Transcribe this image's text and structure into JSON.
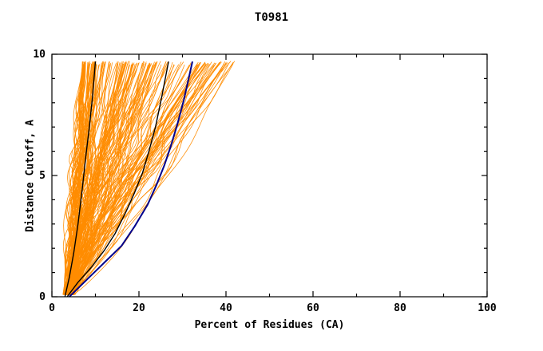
{
  "window": {
    "title": "T0981"
  },
  "chart_data": {
    "type": "line",
    "title": "T0981",
    "xlabel": "Percent of Residues (CA)",
    "ylabel": "Distance Cutoff, A",
    "xlim": [
      0,
      100
    ],
    "ylim": [
      0,
      10
    ],
    "x_ticks": [
      0,
      20,
      40,
      60,
      80,
      100
    ],
    "y_ticks": [
      0,
      5,
      10
    ],
    "x_minor_step": 10,
    "y_minor_step": 1,
    "grid": false,
    "legend": "none",
    "colors": {
      "ensemble": "#ff8c00",
      "reference": "#000000",
      "highlight": "#00008b"
    },
    "series": [
      {
        "name": "model-ensemble",
        "style": "bundle",
        "color": "#ff8c00",
        "count": 180,
        "x_start_range": [
          2.5,
          5.0
        ],
        "x_top_range": [
          7,
          43
        ],
        "top_skew_exp": 1.6,
        "shape_exp_range": [
          0.75,
          1.35
        ],
        "y_top_range": [
          9.55,
          9.72
        ]
      },
      {
        "name": "reference-left",
        "color": "#000000",
        "width": 1.4,
        "points": [
          [
            3,
            0
          ],
          [
            4,
            0.8
          ],
          [
            5,
            1.8
          ],
          [
            6,
            3.0
          ],
          [
            7,
            4.5
          ],
          [
            7.8,
            5.8
          ],
          [
            8.6,
            7.0
          ],
          [
            9.3,
            8.2
          ],
          [
            10,
            9.7
          ]
        ]
      },
      {
        "name": "reference-mid",
        "color": "#000000",
        "width": 1.4,
        "points": [
          [
            3.5,
            0
          ],
          [
            6,
            0.6
          ],
          [
            9,
            1.2
          ],
          [
            12,
            1.9
          ],
          [
            14.5,
            2.6
          ],
          [
            17,
            3.5
          ],
          [
            19,
            4.3
          ],
          [
            20.8,
            5.1
          ],
          [
            22.3,
            6.0
          ],
          [
            23.8,
            7.0
          ],
          [
            25.2,
            8.2
          ],
          [
            26.8,
            9.7
          ]
        ]
      },
      {
        "name": "selected-model",
        "color": "#00008b",
        "width": 2.0,
        "points": [
          [
            4,
            0
          ],
          [
            8,
            0.7
          ],
          [
            12,
            1.4
          ],
          [
            16,
            2.1
          ],
          [
            19,
            2.9
          ],
          [
            22,
            3.8
          ],
          [
            24,
            4.6
          ],
          [
            25.8,
            5.4
          ],
          [
            27.3,
            6.2
          ],
          [
            28.8,
            7.1
          ],
          [
            30.3,
            8.1
          ],
          [
            31.3,
            8.9
          ],
          [
            32.3,
            9.7
          ]
        ]
      }
    ]
  }
}
